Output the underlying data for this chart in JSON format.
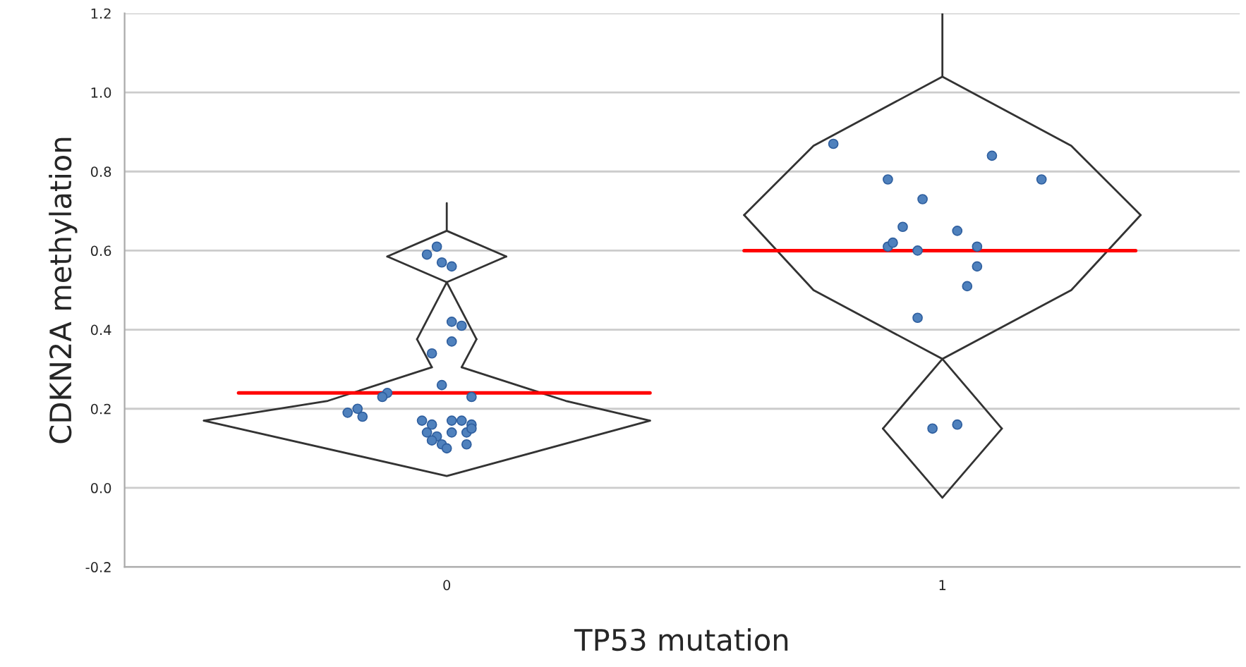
{
  "chart_data": {
    "type": "scatter",
    "xlabel": "TP53 mutation",
    "ylabel": "CDKN2A methylation",
    "xlim": [
      -0.65,
      1.6
    ],
    "xticks": [
      0,
      1
    ],
    "ylim": [
      -0.2,
      1.2
    ],
    "yticks": [
      {
        "value": -0.2,
        "label": "-0.2"
      },
      {
        "value": 0.0,
        "label": "0.0"
      },
      {
        "value": 0.2,
        "label": "0.2"
      },
      {
        "value": 0.4,
        "label": "0.4"
      },
      {
        "value": 0.6,
        "label": "0.6"
      },
      {
        "value": 0.8,
        "label": "0.8"
      },
      {
        "value": 1.0,
        "label": "1.0"
      },
      {
        "value": 1.2,
        "label": "1.2"
      }
    ],
    "grid": "y",
    "legend": false,
    "series": [
      {
        "type": "line",
        "color": "#333333",
        "line_style": "solid",
        "x": [
          0,
          0
        ],
        "values": [
          0.72,
          0.65
        ]
      },
      {
        "type": "line",
        "color": "#333333",
        "line_style": "solid",
        "x": [
          -0.12,
          0,
          0.12
        ],
        "values": [
          0.585,
          0.65,
          0.585
        ]
      },
      {
        "type": "line",
        "color": "#333333",
        "line_style": "solid",
        "x": [
          -0.12,
          0,
          0.12
        ],
        "values": [
          0.585,
          0.52,
          0.585
        ]
      },
      {
        "type": "line",
        "color": "#333333",
        "line_style": "solid",
        "x": [
          -0.06,
          0,
          0.06
        ],
        "values": [
          0.376,
          0.52,
          0.376
        ]
      },
      {
        "type": "line",
        "color": "#333333",
        "line_style": "solid",
        "x": [
          -0.06,
          -0.03
        ],
        "values": [
          0.376,
          0.305
        ]
      },
      {
        "type": "line",
        "color": "#333333",
        "line_style": "solid",
        "x": [
          0.03,
          0.06
        ],
        "values": [
          0.305,
          0.376
        ]
      },
      {
        "type": "line",
        "color": "#333333",
        "line_style": "solid",
        "x": [
          -0.49,
          -0.24,
          -0.03
        ],
        "values": [
          0.17,
          0.22,
          0.305
        ]
      },
      {
        "type": "line",
        "color": "#333333",
        "line_style": "solid",
        "x": [
          0.03,
          0.24,
          0.41
        ],
        "values": [
          0.305,
          0.22,
          0.17
        ]
      },
      {
        "type": "line",
        "color": "#333333",
        "line_style": "solid",
        "x": [
          -0.49,
          0,
          0.41
        ],
        "values": [
          0.17,
          0.03,
          0.17
        ]
      },
      {
        "type": "line",
        "color": "#333333",
        "line_style": "solid",
        "x": [
          1,
          1
        ],
        "values": [
          1.2,
          1.04
        ]
      },
      {
        "type": "line",
        "color": "#333333",
        "line_style": "solid",
        "x": [
          0.6,
          0.74,
          1,
          1.26,
          1.4
        ],
        "values": [
          0.69,
          0.865,
          1.04,
          0.865,
          0.69
        ]
      },
      {
        "type": "line",
        "color": "#333333",
        "line_style": "solid",
        "x": [
          0.6,
          0.74,
          1,
          1.26,
          1.4
        ],
        "values": [
          0.69,
          0.5,
          0.326,
          0.5,
          0.69
        ]
      },
      {
        "type": "line",
        "color": "#333333",
        "line_style": "solid",
        "x": [
          0.88,
          1,
          1.12
        ],
        "values": [
          0.15,
          0.326,
          0.15
        ]
      },
      {
        "type": "line",
        "color": "#333333",
        "line_style": "solid",
        "x": [
          0.88,
          1,
          1.12
        ],
        "values": [
          0.15,
          -0.025,
          0.15
        ]
      },
      {
        "color": "#4f81bd",
        "marker": "circle",
        "x": [
          -0.02,
          -0.04,
          -0.01,
          0.01,
          0.01,
          0.03,
          0.01,
          -0.03,
          -0.01,
          -0.12,
          -0.13,
          0.05,
          -0.2,
          -0.18,
          -0.17,
          -0.05,
          -0.03,
          0.01,
          0.03,
          0.05,
          -0.04,
          -0.02,
          0.01,
          0.04,
          -0.01,
          0.0,
          0.04,
          -0.03,
          0.05
        ],
        "values": [
          0.61,
          0.59,
          0.57,
          0.56,
          0.42,
          0.41,
          0.37,
          0.34,
          0.26,
          0.24,
          0.23,
          0.23,
          0.19,
          0.2,
          0.18,
          0.17,
          0.16,
          0.17,
          0.17,
          0.16,
          0.14,
          0.13,
          0.14,
          0.14,
          0.11,
          0.1,
          0.11,
          0.12,
          0.15
        ]
      },
      {
        "color": "#4f81bd",
        "marker": "circle",
        "x": [
          0.78,
          1.1,
          0.89,
          1.2,
          0.96,
          0.92,
          1.03,
          0.89,
          0.9,
          0.95,
          1.07,
          1.07,
          1.05,
          0.95,
          0.98,
          1.03
        ],
        "values": [
          0.87,
          0.84,
          0.78,
          0.78,
          0.73,
          0.66,
          0.65,
          0.61,
          0.62,
          0.6,
          0.61,
          0.56,
          0.51,
          0.43,
          0.15,
          0.16
        ]
      },
      {
        "type": "line",
        "color": "#ff0000",
        "line_style": "solid",
        "x": [
          -0.42,
          0.41
        ],
        "values": [
          0.24,
          0.24
        ]
      },
      {
        "type": "line",
        "color": "#ff0000",
        "line_style": "solid",
        "x": [
          0.6,
          1.39
        ],
        "values": [
          0.6,
          0.6
        ]
      }
    ]
  }
}
